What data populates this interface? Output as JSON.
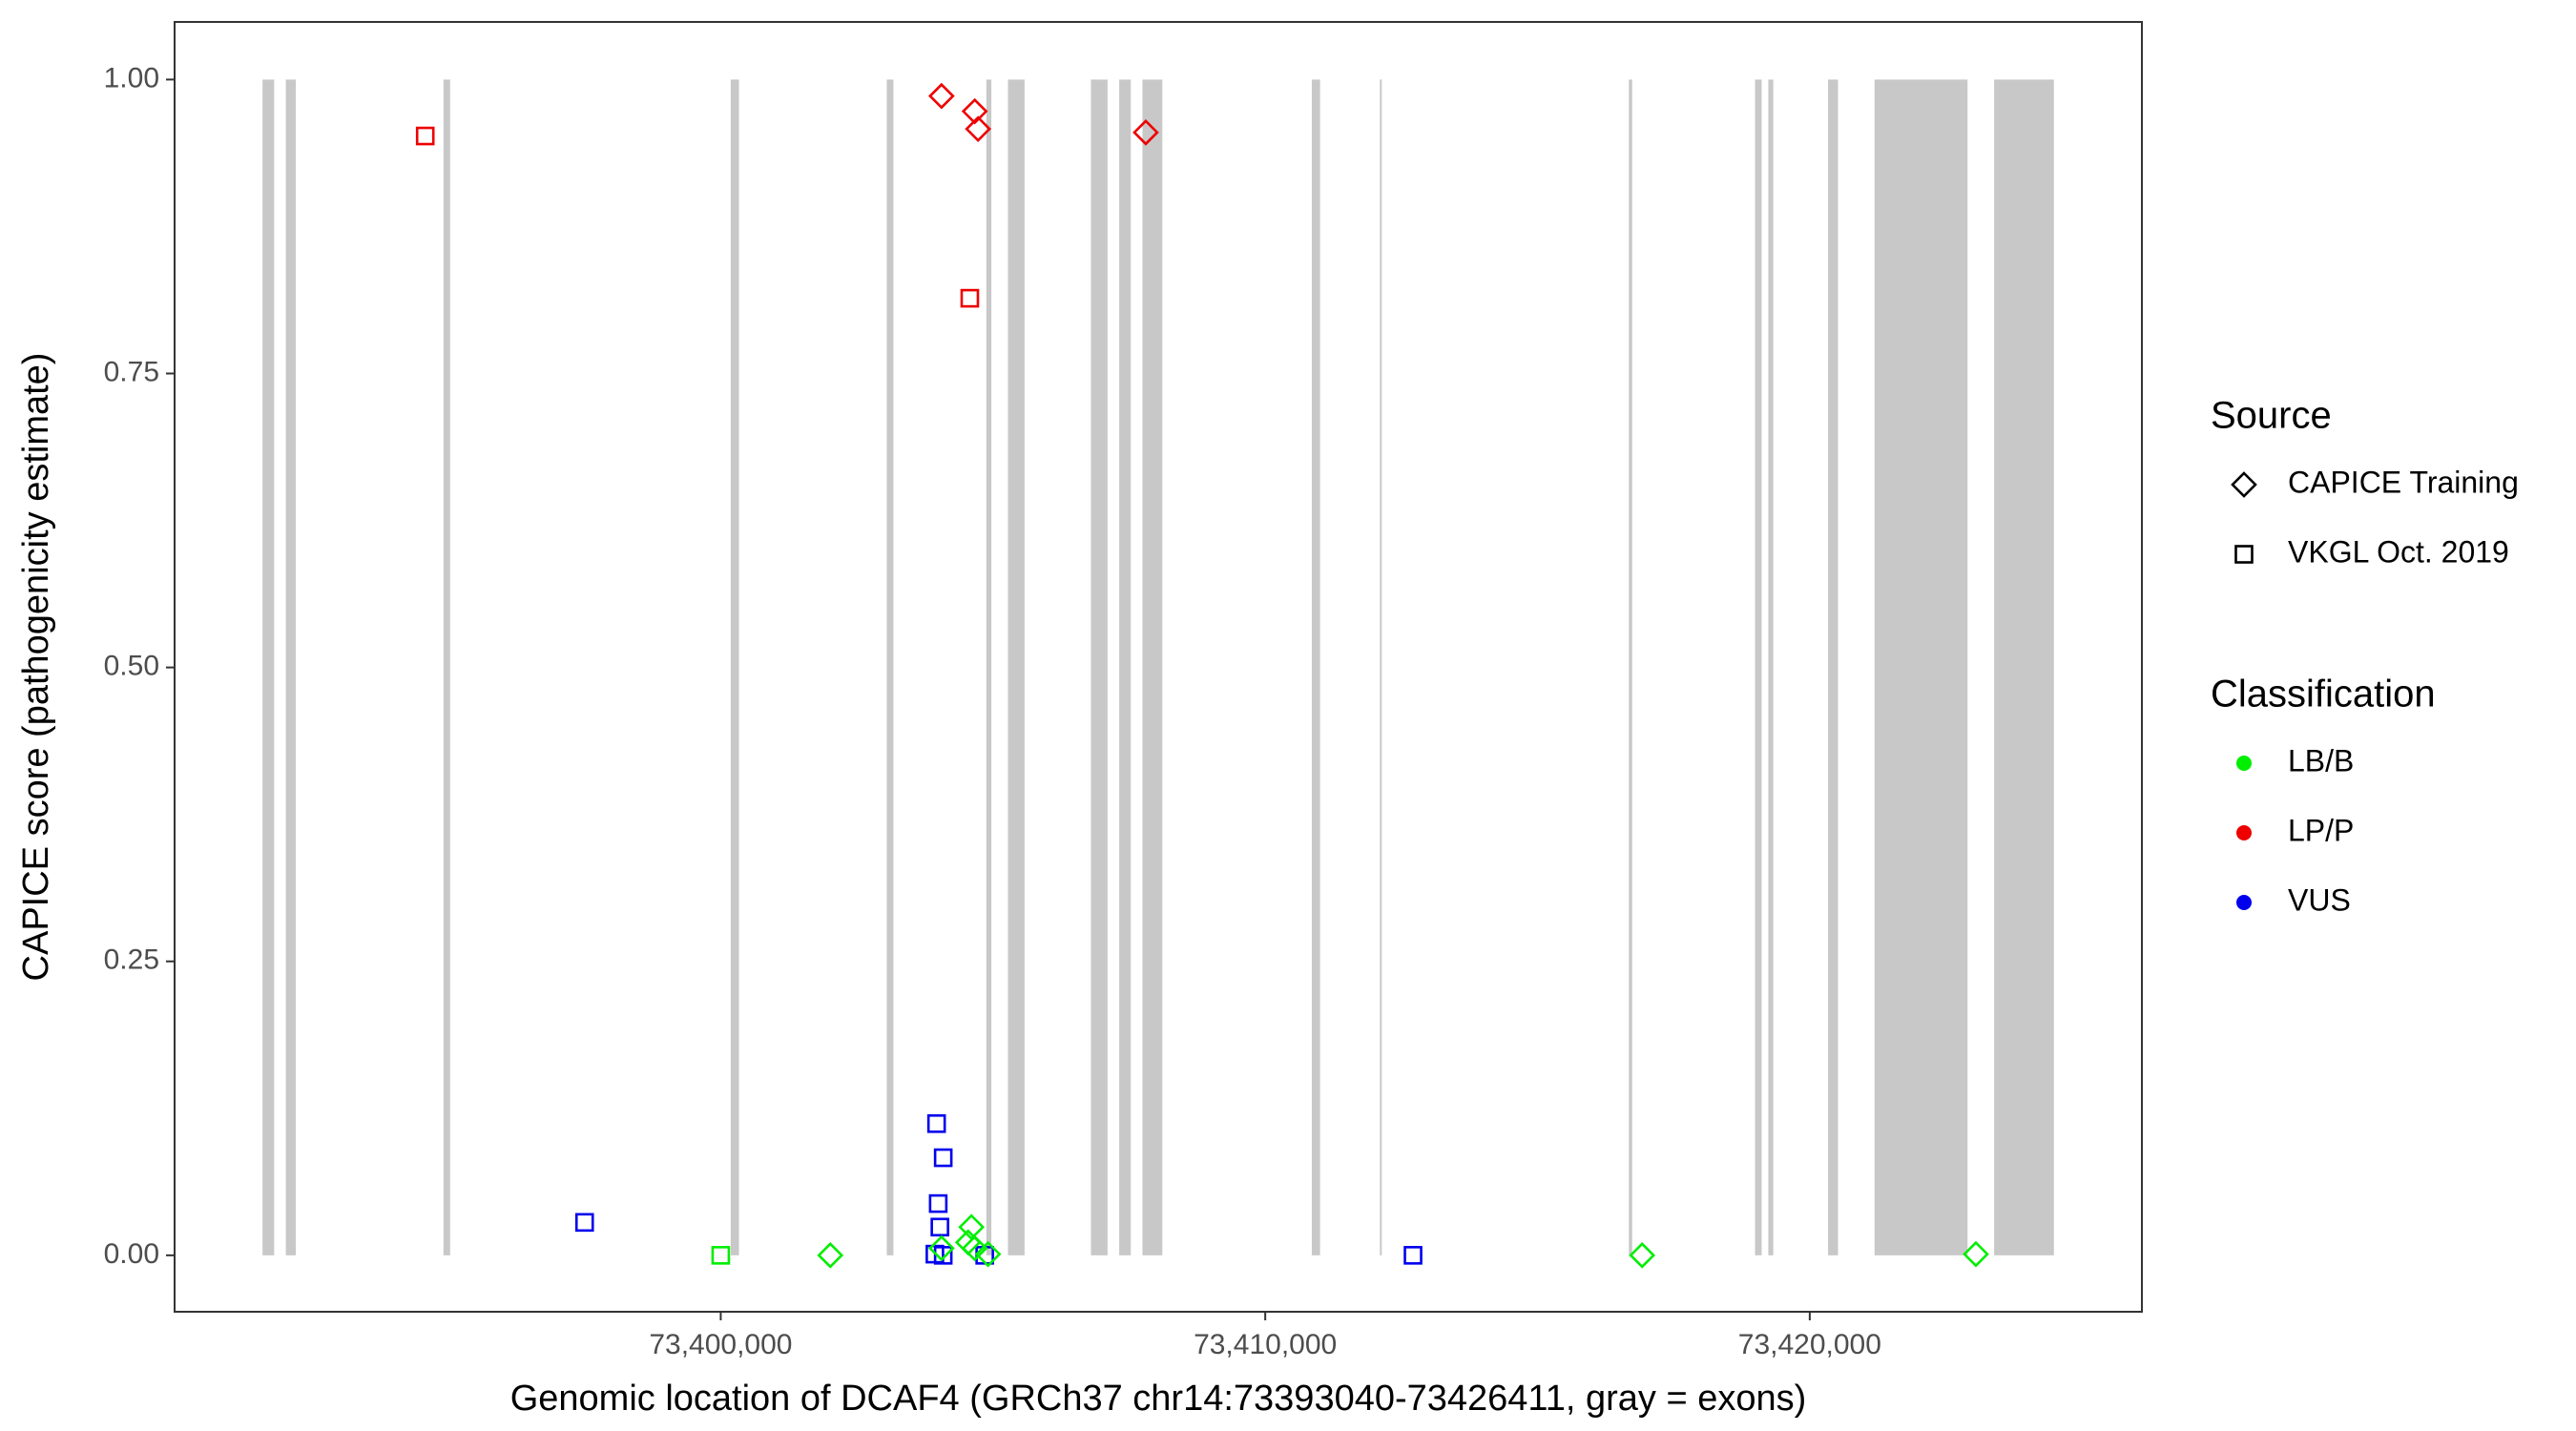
{
  "chart_data": {
    "type": "scatter",
    "xlabel": "Genomic location of DCAF4 (GRCh37 chr14:73393040-73426411, gray = exons)",
    "ylabel": "CAPICE score (pathogenicity estimate)",
    "xlim": [
      73389970,
      73426100
    ],
    "ylim": [
      -0.048,
      1.049
    ],
    "xticks": [
      {
        "value": 73400000,
        "label": "73,400,000"
      },
      {
        "value": 73410000,
        "label": "73,410,000"
      },
      {
        "value": 73420000,
        "label": "73,420,000"
      }
    ],
    "yticks": [
      {
        "value": 0,
        "label": "0.00"
      },
      {
        "value": 0.25,
        "label": "0.25"
      },
      {
        "value": 0.5,
        "label": "0.50"
      },
      {
        "value": 0.75,
        "label": "0.75"
      },
      {
        "value": 1,
        "label": "1.00"
      }
    ],
    "exon_color": "#c8c8c8",
    "exons": [
      [
        73391585,
        73391798
      ],
      [
        73392012,
        73392195
      ],
      [
        73394908,
        73395030
      ],
      [
        73400183,
        73400335
      ],
      [
        73403049,
        73403171
      ],
      [
        73404878,
        73404970
      ],
      [
        73405275,
        73405580
      ],
      [
        73406799,
        73407104
      ],
      [
        73407318,
        73407531
      ],
      [
        73407745,
        73408110
      ],
      [
        73410855,
        73411007
      ],
      [
        73412105,
        73412135
      ],
      [
        73416678,
        73416739
      ],
      [
        73418995,
        73419117
      ],
      [
        73419239,
        73419330
      ],
      [
        73420336,
        73420519
      ],
      [
        73421190,
        73422898
      ],
      [
        73423386,
        73424484
      ]
    ],
    "legend_source": {
      "title": "Source",
      "items": [
        {
          "label": "CAPICE Training",
          "shape": "diamond"
        },
        {
          "label": "VKGL Oct. 2019",
          "shape": "square"
        }
      ]
    },
    "legend_classification": {
      "title": "Classification",
      "items": [
        {
          "label": "LB/B",
          "color": "#00ee00"
        },
        {
          "label": "LP/P",
          "color": "#ee0000"
        },
        {
          "label": "VUS",
          "color": "#0000ee"
        }
      ]
    },
    "series": [
      {
        "source": "CAPICE Training",
        "classification": "LP/P",
        "x": [
          73404055,
          73404665,
          73404726,
          73407806
        ],
        "values": [
          0.986,
          0.973,
          0.958,
          0.955
        ]
      },
      {
        "source": "VKGL Oct. 2019",
        "classification": "LP/P",
        "x": [
          73394573,
          73404574
        ],
        "values": [
          0.952,
          0.814
        ]
      },
      {
        "source": "VKGL Oct. 2019",
        "classification": "VUS",
        "x": [
          73397500,
          73403964,
          73404086,
          73403994,
          73404025,
          73403933,
          73404086,
          73404848,
          73412714
        ],
        "values": [
          0.028,
          0.112,
          0.083,
          0.044,
          0.024,
          0.001,
          0,
          0,
          0
        ]
      },
      {
        "source": "VKGL Oct. 2019",
        "classification": "LB/B",
        "x": [
          73400000
        ],
        "values": [
          0
        ]
      },
      {
        "source": "CAPICE Training",
        "classification": "LB/B",
        "x": [
          73402012,
          73404604,
          73404543,
          73404665,
          73404909,
          73404055,
          73416922,
          73423051
        ],
        "values": [
          0,
          0.024,
          0.011,
          0.006,
          0.001,
          0.006,
          0,
          0.001
        ]
      }
    ]
  }
}
